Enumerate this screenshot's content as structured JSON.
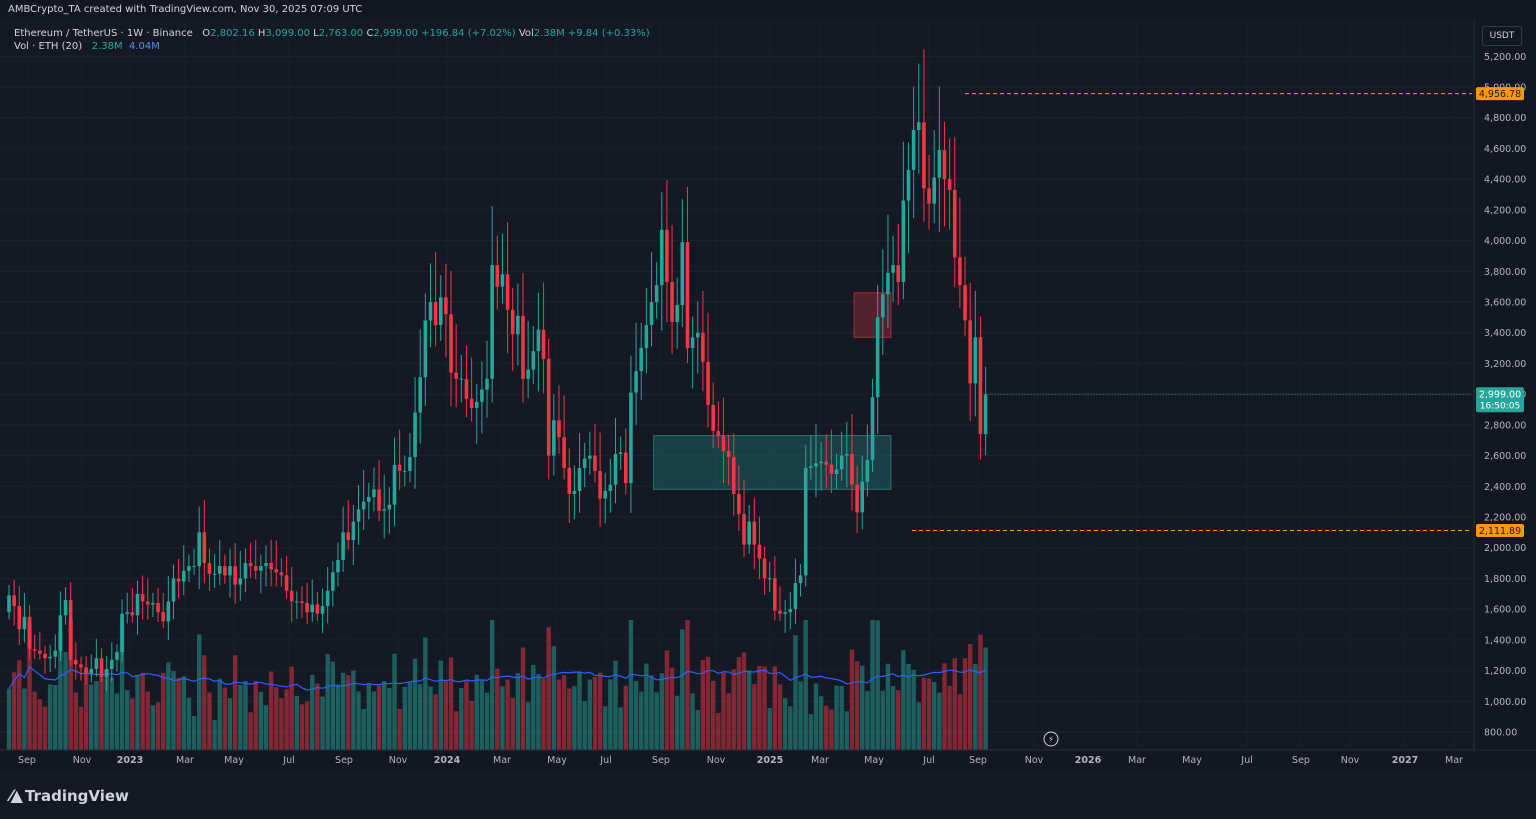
{
  "header": {
    "created_by": "AMBCrypto_TA created with TradingView.com, Nov 30, 2025 07:09 UTC"
  },
  "legend": {
    "symbol": "Ethereum / TetherUS · 1W · Binance",
    "open_label": "O",
    "open": "2,802.16",
    "high_label": "H",
    "high": "3,099.00",
    "low_label": "L",
    "low": "2,763.00",
    "close_label": "C",
    "close": "2,999.00",
    "change": "+196.84 (+7.02%)",
    "vol_label": "Vol",
    "vol": "2.38M",
    "vol_change": "+9.84 (+0.33%)",
    "vol_indicator": "Vol · ETH (20)",
    "vol_value": "2.38M",
    "vol_ma": "4.04M"
  },
  "currency_button": "USDT",
  "brand": "TradingView",
  "colors": {
    "up": "#26a69a",
    "down": "#f23645",
    "background": "#151924",
    "ma": "#2962ff",
    "orange": "#ff9800"
  },
  "chart_data": {
    "type": "candlestick",
    "y_axis": {
      "ticks": [
        "800.00",
        "1,000.00",
        "1,200.00",
        "1,400.00",
        "1,600.00",
        "1,800.00",
        "2,000.00",
        "2,200.00",
        "2,400.00",
        "2,600.00",
        "2,800.00",
        "3,000.00",
        "3,200.00",
        "3,400.00",
        "3,600.00",
        "3,800.00",
        "4,000.00",
        "4,200.00",
        "4,400.00",
        "4,600.00",
        "4,800.00",
        "5,000.00",
        "5,200.00"
      ],
      "range": [
        700,
        5500
      ]
    },
    "x_axis": {
      "labels": [
        "Sep",
        "Nov",
        "2023",
        "Mar",
        "May",
        "Jul",
        "Sep",
        "Nov",
        "2024",
        "Mar",
        "May",
        "Jul",
        "Sep",
        "Nov",
        "2025",
        "Mar",
        "May",
        "Jul",
        "Sep",
        "Nov",
        "2026",
        "Mar",
        "May",
        "Jul",
        "Sep",
        "Nov",
        "2027",
        "Mar"
      ]
    },
    "price_labels": {
      "high_level": "4,956.78",
      "low_level": "2,111.89",
      "current_price": "2,999.00",
      "countdown": "16:50:05"
    },
    "levels": {
      "high": 4956.78,
      "low": 2111.89
    },
    "zones": [
      {
        "name": "demand-zone",
        "from_week": 126,
        "to_week": 171,
        "top": 2730,
        "bottom": 2380,
        "color": "#26a69a"
      },
      {
        "name": "supply-zone",
        "from_week": 165,
        "to_week": 171,
        "top": 3660,
        "bottom": 3370,
        "color": "#f23645"
      }
    ],
    "closes": [
      1690,
      1620,
      1470,
      1550,
      1340,
      1330,
      1310,
      1280,
      1290,
      1330,
      1560,
      1660,
      1270,
      1240,
      1220,
      1180,
      1210,
      1280,
      1160,
      1210,
      1270,
      1320,
      1570,
      1580,
      1560,
      1700,
      1650,
      1630,
      1640,
      1580,
      1520,
      1650,
      1800,
      1780,
      1850,
      1880,
      1880,
      2100,
      1900,
      1830,
      1830,
      1880,
      1820,
      1880,
      1760,
      1800,
      1900,
      1880,
      1850,
      1880,
      1900,
      1860,
      1840,
      1820,
      1720,
      1650,
      1650,
      1640,
      1580,
      1630,
      1570,
      1620,
      1720,
      1840,
      1920,
      2100,
      2050,
      2170,
      2250,
      2300,
      2330,
      2380,
      2240,
      2250,
      2280,
      2540,
      2500,
      2500,
      2590,
      2880,
      3110,
      3480,
      3600,
      3450,
      3630,
      3520,
      3140,
      3100,
      3100,
      2970,
      2910,
      2950,
      3030,
      3100,
      3840,
      3700,
      3780,
      3550,
      3390,
      3510,
      3100,
      3160,
      3280,
      3420,
      3230,
      2600,
      2830,
      2720,
      2520,
      2350,
      2370,
      2520,
      2580,
      2600,
      2500,
      2320,
      2370,
      2410,
      2610,
      2620,
      2420,
      3010,
      3150,
      3300,
      3450,
      3600,
      3710,
      4070,
      3730,
      3470,
      3580,
      3990,
      3300,
      3370,
      3400,
      3210,
      2930,
      2760,
      2730,
      2630,
      2590,
      2350,
      2220,
      2020,
      2170,
      2020,
      1930,
      1800,
      1800,
      1590,
      1570,
      1580,
      1600,
      1770,
      1820,
      2520,
      2530,
      2550,
      2560,
      2540,
      2480,
      2510,
      2600,
      2610,
      2410,
      2230,
      2430,
      2570,
      2980,
      3500,
      3650,
      3790,
      3840,
      3730,
      4260,
      4460,
      4720,
      4770,
      4340,
      4240,
      4410,
      4590,
      4400,
      4330,
      3890,
      3710,
      3480,
      3070,
      3370,
      2740,
      2999
    ],
    "first_open": 1580,
    "week_x_start": 9,
    "week_x_step": 5.14
  }
}
